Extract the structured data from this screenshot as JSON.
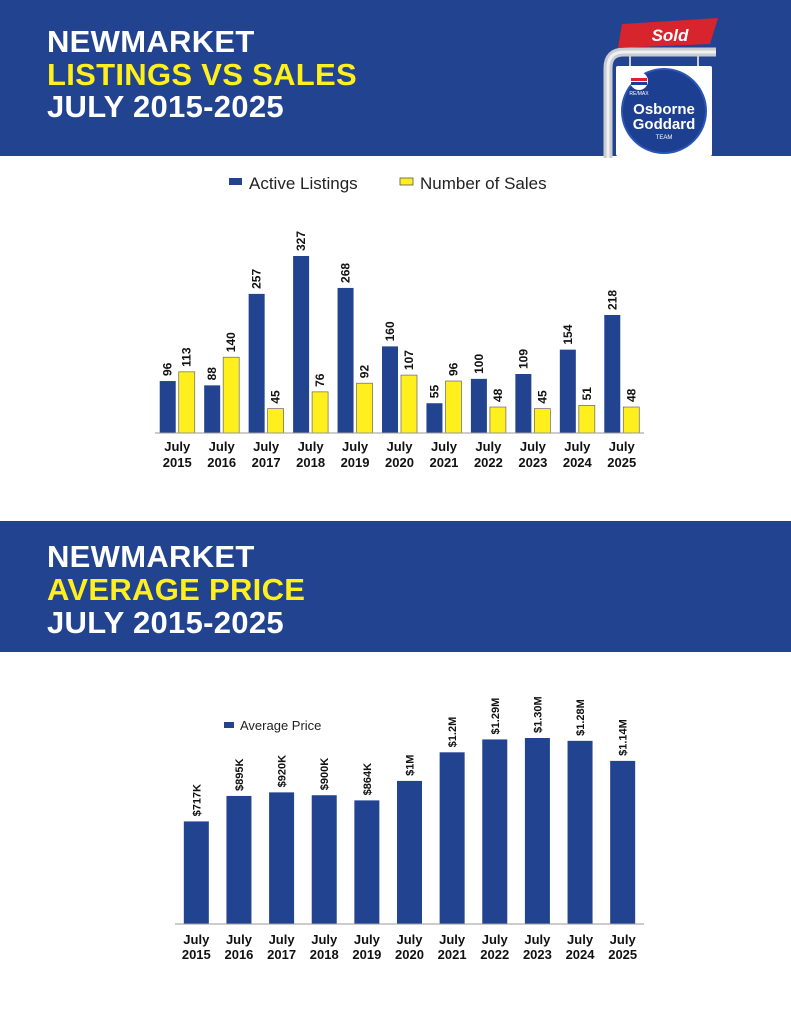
{
  "section1": {
    "title_line1": "NEWMARKET",
    "title_line2": "LISTINGS VS SALES",
    "title_line3": "JULY 2015-2025"
  },
  "section2": {
    "title_line1": "NEWMARKET",
    "title_line2": "AVERAGE PRICE",
    "title_line3": "JULY 2015-2025"
  },
  "logo": {
    "sold": "Sold",
    "remax": "RE/MAX",
    "line1": "Osborne",
    "line2": "Goddard",
    "line3": "TEAM"
  },
  "colors": {
    "banner": "#22438f",
    "accent_yellow": "#ffef1c",
    "listings_bar": "#22438f",
    "sales_bar": "#ffef1c",
    "sold_red": "#d7242d"
  },
  "chart_data": [
    {
      "type": "bar",
      "categories": [
        {
          "line1": "July",
          "line2": "2015"
        },
        {
          "line1": "July",
          "line2": "2016"
        },
        {
          "line1": "July",
          "line2": "2017"
        },
        {
          "line1": "July",
          "line2": "2018"
        },
        {
          "line1": "July",
          "line2": "2019"
        },
        {
          "line1": "July",
          "line2": "2020"
        },
        {
          "line1": "July",
          "line2": "2021"
        },
        {
          "line1": "July",
          "line2": "2022"
        },
        {
          "line1": "July",
          "line2": "2023"
        },
        {
          "line1": "July",
          "line2": "2024"
        },
        {
          "line1": "July",
          "line2": "2025"
        }
      ],
      "series": [
        {
          "name": "Active Listings",
          "color": "#22438f",
          "values": [
            96,
            88,
            257,
            327,
            268,
            160,
            55,
            100,
            109,
            154,
            218
          ]
        },
        {
          "name": "Number of Sales",
          "color": "#ffef1c",
          "values": [
            113,
            140,
            45,
            76,
            92,
            107,
            96,
            48,
            45,
            51,
            48
          ]
        }
      ],
      "legend": "top-center",
      "grid": false,
      "ylim": [
        0,
        327
      ]
    },
    {
      "type": "bar",
      "categories": [
        {
          "line1": "July",
          "line2": "2015"
        },
        {
          "line1": "July",
          "line2": "2016"
        },
        {
          "line1": "July",
          "line2": "2017"
        },
        {
          "line1": "July",
          "line2": "2018"
        },
        {
          "line1": "July",
          "line2": "2019"
        },
        {
          "line1": "July",
          "line2": "2020"
        },
        {
          "line1": "July",
          "line2": "2021"
        },
        {
          "line1": "July",
          "line2": "2022"
        },
        {
          "line1": "July",
          "line2": "2023"
        },
        {
          "line1": "July",
          "line2": "2024"
        },
        {
          "line1": "July",
          "line2": "2025"
        }
      ],
      "series": [
        {
          "name": "Average Price",
          "color": "#22438f",
          "values": [
            717000,
            895000,
            920000,
            900000,
            864000,
            1000000,
            1200000,
            1290000,
            1300000,
            1280000,
            1140000
          ],
          "labels": [
            "$717K",
            "$895K",
            "$920K",
            "$900K",
            "$864K",
            "$1M",
            "$1.2M",
            "$1.29M",
            "$1.30M",
            "$1.28M",
            "$1.14M"
          ]
        }
      ],
      "legend": "top-left",
      "grid": false,
      "ylim": [
        0,
        1300000
      ]
    }
  ]
}
